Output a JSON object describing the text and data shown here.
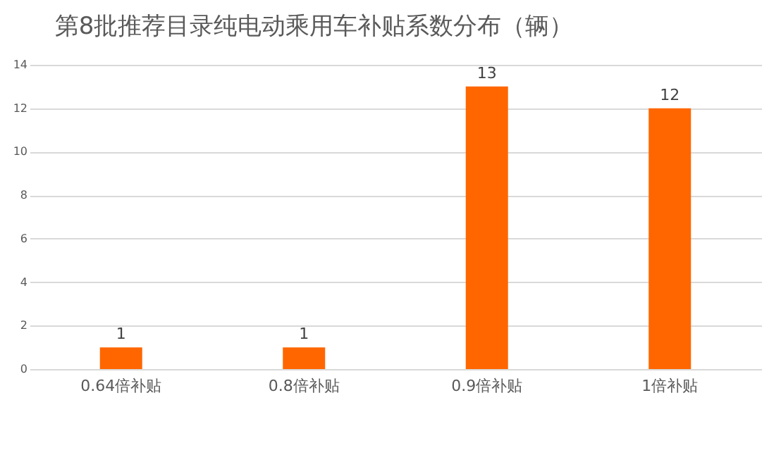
{
  "chart_data": {
    "type": "bar",
    "title": "第8批推荐目录纯电动乘用车补贴系数分布（辆）",
    "categories": [
      "0.64倍补贴",
      "0.8倍补贴",
      "0.9倍补贴",
      "1倍补贴"
    ],
    "values": [
      1,
      1,
      13,
      12
    ],
    "color": "#ff6600",
    "ylim": [
      0,
      14
    ],
    "yticks": [
      0,
      2,
      4,
      6,
      8,
      10,
      12,
      14
    ],
    "grid": "y",
    "data_labels": true
  }
}
